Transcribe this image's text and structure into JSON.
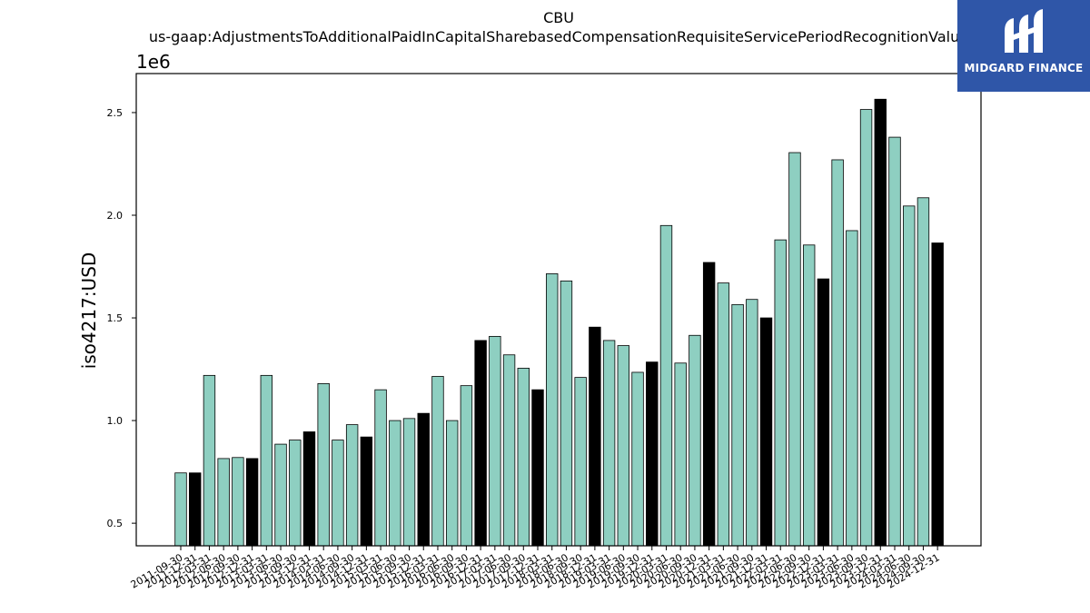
{
  "chart_data": {
    "type": "bar",
    "title": "CBU",
    "subtitle": "us-gaap:AdjustmentsToAdditionalPaidInCapitalSharebasedCompensationRequisiteServicePeriodRecognitionValue",
    "ylabel": "iso4217:USD",
    "xlabel": "",
    "y_offset_label": "1e6",
    "ylim": [
      0.39,
      2.69
    ],
    "yticks": [
      0.5,
      1.0,
      1.5,
      2.0,
      2.5
    ],
    "ytick_labels": [
      "0.5",
      "1.0",
      "1.5",
      "2.0",
      "2.5"
    ],
    "grid": false,
    "colors": {
      "quarter": "#8ecfc1",
      "annual": "#000000",
      "edge": "#000000"
    },
    "categories": [
      "2011-09-30",
      "2011-12-31",
      "2012-03-31",
      "2012-06-30",
      "2012-09-30",
      "2012-12-31",
      "2013-03-31",
      "2013-06-30",
      "2013-09-30",
      "2013-12-31",
      "2014-03-31",
      "2014-06-30",
      "2014-09-30",
      "2014-12-31",
      "2015-03-31",
      "2015-06-30",
      "2015-09-30",
      "2015-12-31",
      "2016-03-31",
      "2016-06-30",
      "2016-09-30",
      "2016-12-31",
      "2017-03-31",
      "2017-06-30",
      "2017-09-30",
      "2017-12-31",
      "2018-03-31",
      "2018-06-30",
      "2018-09-30",
      "2018-12-31",
      "2019-03-31",
      "2019-06-30",
      "2019-09-30",
      "2019-12-31",
      "2020-03-31",
      "2020-06-30",
      "2020-09-30",
      "2020-12-31",
      "2021-03-31",
      "2021-06-30",
      "2021-09-30",
      "2021-12-31",
      "2022-03-31",
      "2022-06-30",
      "2022-09-30",
      "2022-12-31",
      "2023-03-31",
      "2023-06-30",
      "2023-09-30",
      "2023-12-31",
      "2024-03-31",
      "2024-06-30",
      "2024-09-30",
      "2024-12-31"
    ],
    "values": [
      0.745,
      0.745,
      1.22,
      0.815,
      0.82,
      0.815,
      1.22,
      0.885,
      0.905,
      0.945,
      1.18,
      0.905,
      0.98,
      0.92,
      1.15,
      1.0,
      1.01,
      1.035,
      1.215,
      1.0,
      1.17,
      1.39,
      1.41,
      1.32,
      1.255,
      1.15,
      1.715,
      1.68,
      1.21,
      1.455,
      1.39,
      1.365,
      1.235,
      1.285,
      1.95,
      1.28,
      1.415,
      1.77,
      1.67,
      1.565,
      1.59,
      1.5,
      1.88,
      2.305,
      1.855,
      1.69,
      2.27,
      1.925,
      2.515,
      2.565,
      2.38,
      2.045,
      2.085,
      1.865
    ],
    "is_annual": [
      false,
      true,
      false,
      false,
      false,
      true,
      false,
      false,
      false,
      true,
      false,
      false,
      false,
      true,
      false,
      false,
      false,
      true,
      false,
      false,
      false,
      true,
      false,
      false,
      false,
      true,
      false,
      false,
      false,
      true,
      false,
      false,
      false,
      true,
      false,
      false,
      false,
      true,
      false,
      false,
      false,
      true,
      false,
      false,
      false,
      true,
      false,
      false,
      false,
      true,
      false,
      false,
      false,
      true
    ]
  },
  "logo": {
    "brand": "MIDGARD FINANCE",
    "icon": "midgard-logo-icon"
  }
}
